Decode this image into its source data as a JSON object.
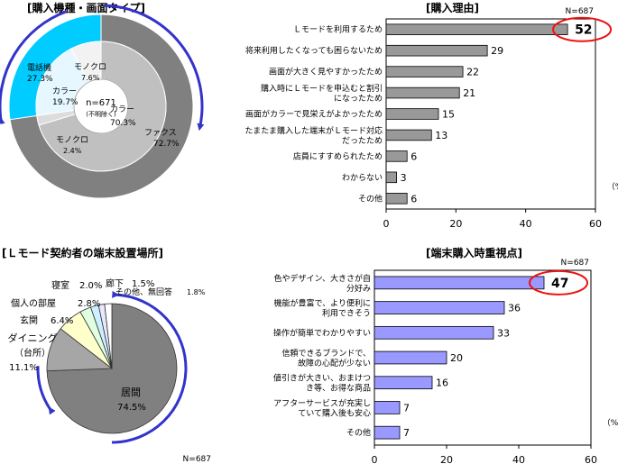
{
  "chart_data": [
    {
      "type": "pie",
      "title": "[購入機種・画面タイプ]",
      "center_label": "n=671",
      "center_sublabel": "(不明除く)",
      "outer": [
        {
          "name": "ファクス",
          "value": 72.7,
          "color": "#808080"
        },
        {
          "name": "電話機",
          "value": 27.3,
          "color": "#00ccff"
        }
      ],
      "inner": [
        {
          "name": "カラー",
          "value": 70.3,
          "color": "#c0c0c0"
        },
        {
          "name": "モノクロ",
          "value": 2.4,
          "color": "#dcdcdc"
        },
        {
          "name": "カラー",
          "value": 19.7,
          "color": "#e6f7ff"
        },
        {
          "name": "モノクロ",
          "value": 7.6,
          "color": "#f2f2f2"
        }
      ],
      "labels": [
        {
          "text": "ファクス",
          "value": "72.7%"
        },
        {
          "text": "電話機",
          "value": "27.3%"
        },
        {
          "text": "カラー",
          "value": "70.3%"
        },
        {
          "text": "モノクロ",
          "value": "2.4%"
        },
        {
          "text": "カラー",
          "value": "19.7%"
        },
        {
          "text": "モノクロ",
          "value": "7.6%"
        }
      ]
    },
    {
      "type": "bar",
      "title": "[購入理由]",
      "n_label": "N=687",
      "unit": "（%）",
      "categories": [
        [
          "Ｌモードを利用するため"
        ],
        [
          "将来利用したくなっても困らないため"
        ],
        [
          "画面が大きく見やすかったため"
        ],
        [
          "購入時にＬモードを申込むと割引",
          "になったため"
        ],
        [
          "画面がカラーで見栄えがよかったため"
        ],
        [
          "たまたま購入した端末がＬモード対応",
          "だったため"
        ],
        [
          "店員にすすめられたため"
        ],
        [
          "わからない"
        ],
        [
          "その他"
        ]
      ],
      "values": [
        52,
        29,
        22,
        21,
        15,
        13,
        6,
        3,
        6
      ],
      "xlim": [
        0,
        60
      ],
      "xticks": [
        0,
        20,
        40,
        60
      ],
      "highlight_index": 0,
      "bar_color": "#999999"
    },
    {
      "type": "pie",
      "title": "[Ｌモード契約者の端末設置場所]",
      "n_label": "N=687",
      "slices": [
        {
          "name": "居間",
          "value": 74.5,
          "color": "#808080"
        },
        {
          "name": "ダイニング（台所）",
          "value": 11.1,
          "color": "#a6a6a6"
        },
        {
          "name": "玄関",
          "value": 6.4,
          "color": "#ffffcc"
        },
        {
          "name": "個人の部屋",
          "value": 2.8,
          "color": "#e0ffe0"
        },
        {
          "name": "寝室",
          "value": 2.0,
          "color": "#ccf0ff"
        },
        {
          "name": "廊下",
          "value": 1.5,
          "color": "#e8e8ff"
        },
        {
          "name": "その他、無回答",
          "value": 1.8,
          "color": "#ffffff"
        }
      ],
      "labels": [
        {
          "text": "居間",
          "value": "74.5%"
        },
        {
          "text": "ダイニング",
          "text2": "（台所）",
          "value": "11.1%"
        },
        {
          "text": "玄関",
          "value": "6.4%"
        },
        {
          "text": "個人の部屋",
          "value": "2.8%"
        },
        {
          "text": "寝室",
          "value": "2.0%"
        },
        {
          "text": "廊下",
          "value": "1.5%"
        },
        {
          "text": "その他、無回答",
          "value": "1.8%"
        }
      ]
    },
    {
      "type": "bar",
      "title": "[端末購入時重視点]",
      "n_label": "N=687",
      "unit": "（%）",
      "categories": [
        [
          "色やデザイン、大きさが自",
          "分好み"
        ],
        [
          "機能が豊富で、より便利に",
          "利用できそう"
        ],
        [
          "操作が簡単でわかりやすい"
        ],
        [
          "信頼できるブランドで、",
          "故障の心配が少ない"
        ],
        [
          "値引きが大きい、おまけつ",
          "き等、お得な商品"
        ],
        [
          "アフターサービスが充実し",
          "ていて購入後も安心"
        ],
        [
          "その他"
        ]
      ],
      "values": [
        47,
        36,
        33,
        20,
        16,
        7,
        7
      ],
      "xlim": [
        0,
        60
      ],
      "xticks": [
        0,
        20,
        40,
        60
      ],
      "highlight_index": 0,
      "bar_color": "#9999ff"
    }
  ]
}
